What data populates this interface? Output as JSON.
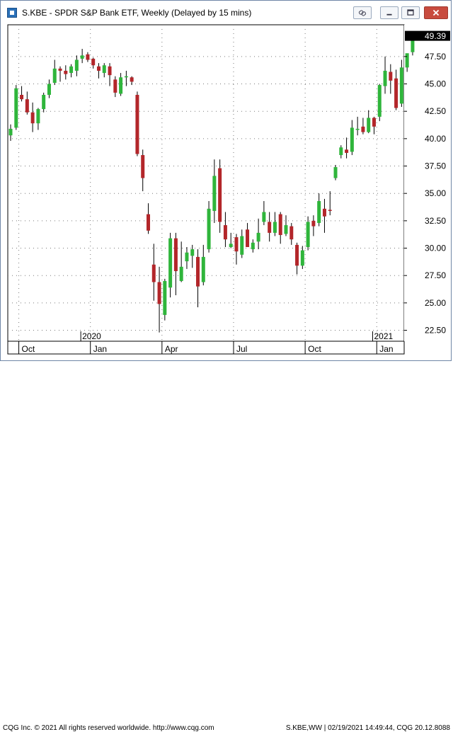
{
  "window": {
    "title": "S.KBE - SPDR S&P Bank ETF, Weekly (Delayed by 15 mins)",
    "buttons": [
      "link-icon",
      "minimize-icon",
      "maximize-icon",
      "close-icon"
    ]
  },
  "status": {
    "left": "CQG Inc. © 2021 All rights reserved worldwide. http://www.cqg.com",
    "right": "S.KBE,WW | 02/19/2021 14:49:44, CQG 20.12.8088"
  },
  "colors": {
    "up": "#2fb53b",
    "down": "#b3262a",
    "close_icon_bg": "#c84b3e"
  },
  "chart_data": {
    "type": "candlestick",
    "symbol": "S.KBE",
    "last_price_label": "49.39",
    "ylim": [
      22.5,
      50.0
    ],
    "y_ticks": [
      "22.50",
      "25.00",
      "27.50",
      "30.00",
      "32.50",
      "35.00",
      "37.50",
      "40.00",
      "42.50",
      "45.00",
      "47.50"
    ],
    "x_month_labels": [
      {
        "label": "Oct",
        "week": 2
      },
      {
        "label": "Jan",
        "week": 15
      },
      {
        "label": "Apr",
        "week": 28
      },
      {
        "label": "Jul",
        "week": 41
      },
      {
        "label": "Oct",
        "week": 54
      },
      {
        "label": "Jan",
        "week": 67
      }
    ],
    "x_year_labels": [
      {
        "label": "2020",
        "week": 13
      },
      {
        "label": "2021",
        "week": 66
      }
    ],
    "candles": [
      [
        40.3,
        41.3,
        39.8,
        40.9
      ],
      [
        41.0,
        44.9,
        40.8,
        44.6
      ],
      [
        44.0,
        44.8,
        43.4,
        43.6
      ],
      [
        43.6,
        44.3,
        42.2,
        42.4
      ],
      [
        42.4,
        43.3,
        40.6,
        41.4
      ],
      [
        41.4,
        42.8,
        40.8,
        42.7
      ],
      [
        42.7,
        44.2,
        42.4,
        44.0
      ],
      [
        44.0,
        45.4,
        43.7,
        45.0
      ],
      [
        45.1,
        47.2,
        44.9,
        46.4
      ],
      [
        46.4,
        46.6,
        45.2,
        46.2
      ],
      [
        46.2,
        46.7,
        45.4,
        45.9
      ],
      [
        46.0,
        46.8,
        45.6,
        46.6
      ],
      [
        46.2,
        47.6,
        45.7,
        47.2
      ],
      [
        47.3,
        48.2,
        46.9,
        47.6
      ],
      [
        47.7,
        47.9,
        47.0,
        47.2
      ],
      [
        47.3,
        47.4,
        46.4,
        46.7
      ],
      [
        46.6,
        46.9,
        45.5,
        46.2
      ],
      [
        46.0,
        46.9,
        45.6,
        46.7
      ],
      [
        46.6,
        46.9,
        44.8,
        45.8
      ],
      [
        45.4,
        45.7,
        43.8,
        44.2
      ],
      [
        44.1,
        46.0,
        43.9,
        45.6
      ],
      [
        45.6,
        46.2,
        44.8,
        45.7
      ],
      [
        45.6,
        45.7,
        44.9,
        45.2
      ],
      [
        44.0,
        44.3,
        38.4,
        38.6
      ],
      [
        38.5,
        39.0,
        35.2,
        36.4
      ],
      [
        33.1,
        34.1,
        31.3,
        31.6
      ],
      [
        28.5,
        30.4,
        25.2,
        26.9
      ],
      [
        26.9,
        28.3,
        22.3,
        24.9
      ],
      [
        23.9,
        27.2,
        23.4,
        27.0
      ],
      [
        26.4,
        31.4,
        25.5,
        30.9
      ],
      [
        30.9,
        31.4,
        25.7,
        27.9
      ],
      [
        27.0,
        30.6,
        26.9,
        28.3
      ],
      [
        28.8,
        30.1,
        28.1,
        29.6
      ],
      [
        29.3,
        30.3,
        28.2,
        29.9
      ],
      [
        29.2,
        29.9,
        24.6,
        26.5
      ],
      [
        26.9,
        30.3,
        26.6,
        29.2
      ],
      [
        29.9,
        34.3,
        29.6,
        33.6
      ],
      [
        33.4,
        38.1,
        32.3,
        36.6
      ],
      [
        37.3,
        38.1,
        31.4,
        32.4
      ],
      [
        32.1,
        33.3,
        30.1,
        30.8
      ],
      [
        30.1,
        31.4,
        30.0,
        30.4
      ],
      [
        31.0,
        31.3,
        28.5,
        29.7
      ],
      [
        29.4,
        31.7,
        29.1,
        31.1
      ],
      [
        31.7,
        32.3,
        30.1,
        30.1
      ],
      [
        29.9,
        30.8,
        29.6,
        30.5
      ],
      [
        30.6,
        32.7,
        29.9,
        31.4
      ],
      [
        32.4,
        34.3,
        32.1,
        33.3
      ],
      [
        32.4,
        33.3,
        30.6,
        31.4
      ],
      [
        31.4,
        33.3,
        31.1,
        32.4
      ],
      [
        33.1,
        33.3,
        30.4,
        31.2
      ],
      [
        31.3,
        33.0,
        31.1,
        32.1
      ],
      [
        32.0,
        32.3,
        30.3,
        30.8
      ],
      [
        30.3,
        30.5,
        27.6,
        28.4
      ],
      [
        28.4,
        30.2,
        28.1,
        29.8
      ],
      [
        30.1,
        32.9,
        29.8,
        32.4
      ],
      [
        32.5,
        33.0,
        31.1,
        32.0
      ],
      [
        32.3,
        35.0,
        32.0,
        34.3
      ],
      [
        33.6,
        34.5,
        31.4,
        32.9
      ],
      [
        33.5,
        35.2,
        33.0,
        33.4
      ],
      [
        36.4,
        37.6,
        36.2,
        37.4
      ],
      [
        38.5,
        39.4,
        38.2,
        39.2
      ],
      [
        39.0,
        40.1,
        38.2,
        38.7
      ],
      [
        38.8,
        41.7,
        38.5,
        41.0
      ],
      [
        40.8,
        42.0,
        40.3,
        40.9
      ],
      [
        41.1,
        41.9,
        40.4,
        40.6
      ],
      [
        40.6,
        42.6,
        40.5,
        41.9
      ],
      [
        41.9,
        42.0,
        40.4,
        41.1
      ],
      [
        42.0,
        45.0,
        41.6,
        44.9
      ],
      [
        44.8,
        47.5,
        44.1,
        46.2
      ],
      [
        46.1,
        46.8,
        44.1,
        45.3
      ],
      [
        45.5,
        46.3,
        42.6,
        42.8
      ],
      [
        43.2,
        47.2,
        42.9,
        46.5
      ],
      [
        46.5,
        47.6,
        46.1,
        47.8
      ],
      [
        47.9,
        49.6,
        47.6,
        49.4
      ]
    ]
  }
}
